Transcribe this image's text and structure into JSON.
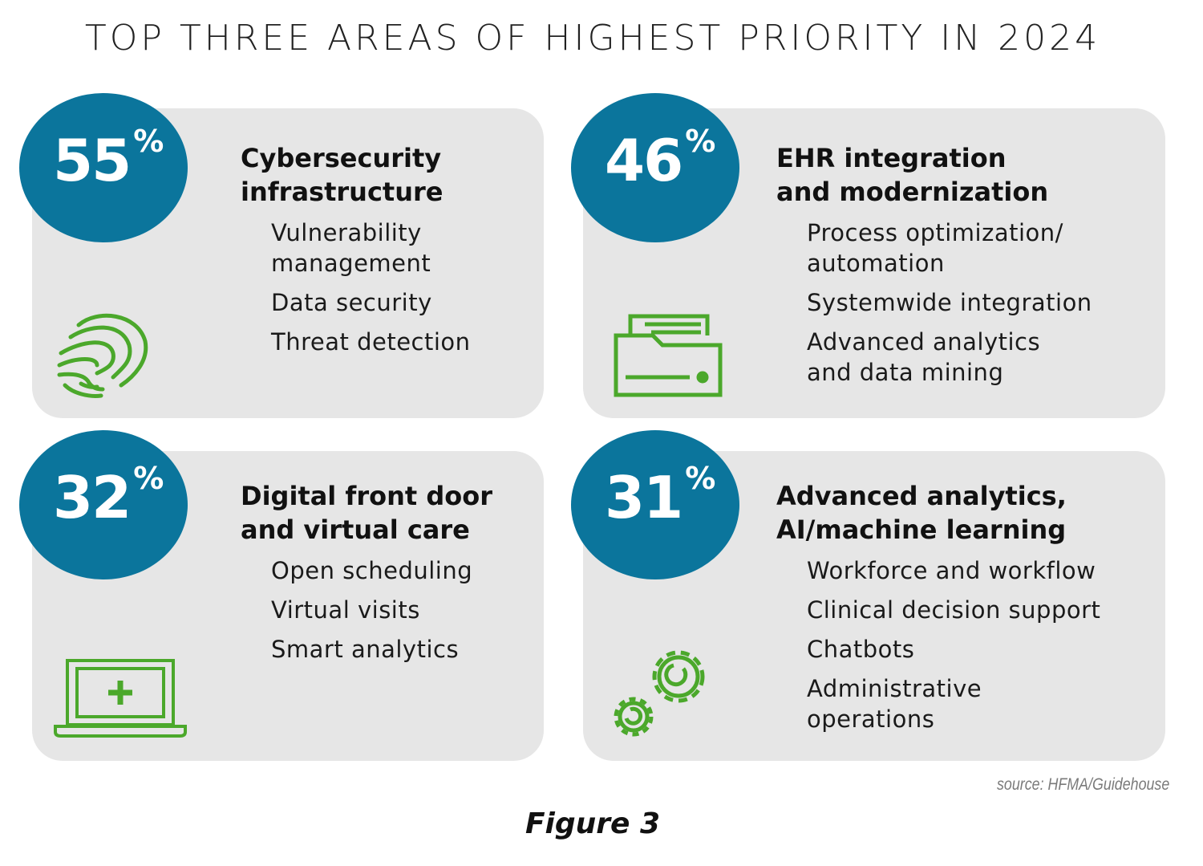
{
  "title": "TOP THREE AREAS OF HIGHEST PRIORITY IN 2024",
  "colors": {
    "circle": "#0b759c",
    "card": "#e6e6e6",
    "icon": "#4ba82b"
  },
  "cards": [
    {
      "value": "55",
      "unit": "%",
      "heading": "Cybersecurity\ninfrastructure",
      "icon": "fingerprint-icon",
      "items": [
        "Vulnerability\nmanagement",
        "Data security",
        "Threat detection"
      ]
    },
    {
      "value": "46",
      "unit": "%",
      "heading": "EHR integration\nand modernization",
      "icon": "printer-icon",
      "items": [
        "Process optimization/\nautomation",
        "Systemwide integration",
        "Advanced analytics\nand data mining"
      ]
    },
    {
      "value": "32",
      "unit": "%",
      "heading": "Digital front door\nand virtual care",
      "icon": "laptop-medical-icon",
      "items": [
        "Open scheduling",
        "Virtual visits",
        "Smart analytics"
      ]
    },
    {
      "value": "31",
      "unit": "%",
      "heading": "Advanced analytics,\nAI/machine learning",
      "icon": "gears-icon",
      "items": [
        "Workforce and workflow",
        "Clinical decision support",
        "Chatbots",
        "Administrative\noperations"
      ]
    }
  ],
  "source": "source: HFMA/Guidehouse",
  "caption": "Figure 3"
}
